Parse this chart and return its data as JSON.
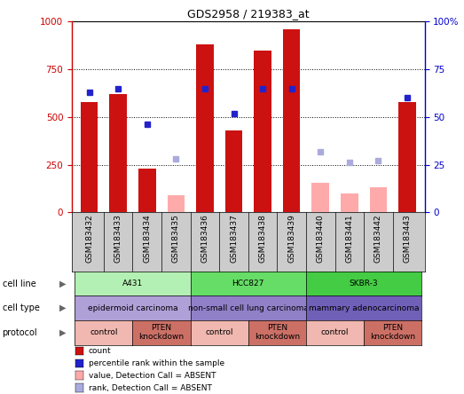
{
  "title": "GDS2958 / 219383_at",
  "samples": [
    "GSM183432",
    "GSM183433",
    "GSM183434",
    "GSM183435",
    "GSM183436",
    "GSM183437",
    "GSM183438",
    "GSM183439",
    "GSM183440",
    "GSM183441",
    "GSM183442",
    "GSM183443"
  ],
  "count_values": [
    580,
    620,
    230,
    null,
    880,
    430,
    850,
    960,
    null,
    null,
    null,
    580
  ],
  "count_absent": [
    null,
    null,
    null,
    90,
    null,
    null,
    null,
    null,
    155,
    100,
    130,
    null
  ],
  "rank_values": [
    63,
    65,
    46,
    null,
    65,
    52,
    65,
    65,
    null,
    null,
    null,
    60
  ],
  "rank_absent": [
    null,
    null,
    null,
    28,
    null,
    null,
    null,
    null,
    32,
    26,
    27,
    null
  ],
  "cell_line_groups": [
    {
      "label": "A431",
      "start": 0,
      "end": 3,
      "color": "#b3f0b3"
    },
    {
      "label": "HCC827",
      "start": 4,
      "end": 7,
      "color": "#66dd66"
    },
    {
      "label": "SKBR-3",
      "start": 8,
      "end": 11,
      "color": "#44cc44"
    }
  ],
  "cell_type_groups": [
    {
      "label": "epidermoid carcinoma",
      "start": 0,
      "end": 3,
      "color": "#b0a0d8"
    },
    {
      "label": "non-small cell lung carcinoma",
      "start": 4,
      "end": 7,
      "color": "#9080c8"
    },
    {
      "label": "mammary adenocarcinoma",
      "start": 8,
      "end": 11,
      "color": "#7060b8"
    }
  ],
  "protocol_groups": [
    {
      "label": "control",
      "start": 0,
      "end": 1,
      "color": "#f0b8b0"
    },
    {
      "label": "PTEN\nknockdown",
      "start": 2,
      "end": 3,
      "color": "#cc7066"
    },
    {
      "label": "control",
      "start": 4,
      "end": 5,
      "color": "#f0b8b0"
    },
    {
      "label": "PTEN\nknockdown",
      "start": 6,
      "end": 7,
      "color": "#cc7066"
    },
    {
      "label": "control",
      "start": 8,
      "end": 9,
      "color": "#f0b8b0"
    },
    {
      "label": "PTEN\nknockdown",
      "start": 10,
      "end": 11,
      "color": "#cc7066"
    }
  ],
  "bar_color": "#cc1111",
  "bar_absent_color": "#ffaaaa",
  "dot_color": "#2222cc",
  "dot_absent_color": "#aaaadd",
  "ylim_left": [
    0,
    1000
  ],
  "ylim_right": [
    0,
    100
  ],
  "yticks_left": [
    0,
    250,
    500,
    750,
    1000
  ],
  "yticks_right": [
    0,
    25,
    50,
    75,
    100
  ],
  "yticklabels_right": [
    "0",
    "25",
    "50",
    "75",
    "100%"
  ],
  "legend_items": [
    {
      "label": "count",
      "color": "#cc1111"
    },
    {
      "label": "percentile rank within the sample",
      "color": "#2222cc"
    },
    {
      "label": "value, Detection Call = ABSENT",
      "color": "#ffaaaa"
    },
    {
      "label": "rank, Detection Call = ABSENT",
      "color": "#aaaadd"
    }
  ],
  "row_labels": [
    "cell line",
    "cell type",
    "protocol"
  ],
  "xtick_bg": "#cccccc",
  "background_color": "#ffffff",
  "axis_left_color": "#cc0000",
  "axis_right_color": "#0000cc"
}
